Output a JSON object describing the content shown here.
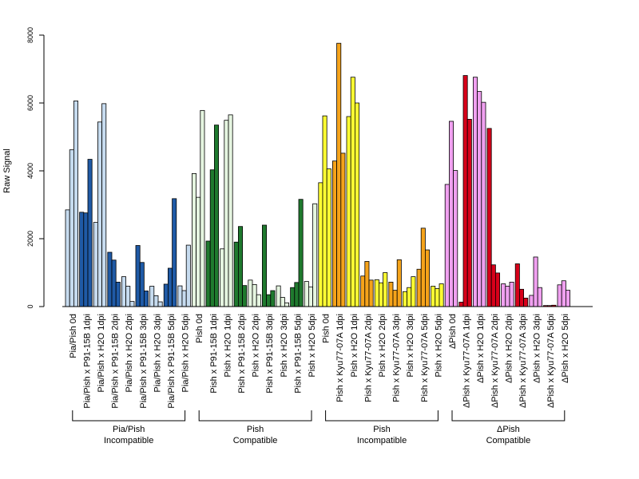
{
  "chart_data": {
    "type": "bar",
    "ylabel": "Raw Signal",
    "ylim": [
      0,
      8000
    ],
    "yticks": [
      0,
      2000,
      4000,
      6000,
      8000
    ],
    "grid": false,
    "categories": [
      {
        "label": "Pia/Pish 0d",
        "color": "#c6dbef",
        "values": [
          2850,
          4620,
          6060
        ]
      },
      {
        "label": "Pia/Pish x P91-15B 1dpi",
        "color": "#1f5aa6",
        "values": [
          2780,
          2760,
          4340
        ]
      },
      {
        "label": "Pia/Pish x H2O 1dpi",
        "color": "#c6dbef",
        "values": [
          2480,
          5440,
          5980
        ]
      },
      {
        "label": "Pia/Pish x P91-15B 2dpi",
        "color": "#1f5aa6",
        "values": [
          1600,
          1370,
          720
        ]
      },
      {
        "label": "Pia/Pish x H2O 2dpi",
        "color": "#c6dbef",
        "values": [
          880,
          600,
          150
        ]
      },
      {
        "label": "Pia/Pish x P91-15B 3dpi",
        "color": "#1f5aa6",
        "values": [
          1800,
          1300,
          460
        ]
      },
      {
        "label": "Pia/Pish x H2O 3dpi",
        "color": "#c6dbef",
        "values": [
          600,
          320,
          140
        ]
      },
      {
        "label": "Pia/Pish x P91-15B 5dpi",
        "color": "#1f5aa6",
        "values": [
          660,
          1130,
          3180
        ]
      },
      {
        "label": "Pia/Pish x H2O 5dpi",
        "color": "#c6dbef",
        "values": [
          610,
          470,
          1810
        ]
      },
      {
        "label": "Pish 0d",
        "color": "#e5f5e0",
        "values": [
          3920,
          3220,
          5780
        ]
      },
      {
        "label": "Pish x P91-15B 1dpi",
        "color": "#1f7a2e",
        "values": [
          1930,
          4030,
          5350
        ]
      },
      {
        "label": "Pish x H2O 1dpi",
        "color": "#e5f5e0",
        "values": [
          1700,
          5490,
          5650
        ]
      },
      {
        "label": "Pish x P91-15B 2dpi",
        "color": "#1f7a2e",
        "values": [
          1900,
          2360,
          620
        ]
      },
      {
        "label": "Pish x H2O 2dpi",
        "color": "#e5f5e0",
        "values": [
          780,
          650,
          350
        ]
      },
      {
        "label": "Pish x P91-15B 3dpi",
        "color": "#1f7a2e",
        "values": [
          2400,
          350,
          470
        ]
      },
      {
        "label": "Pish x H2O 3dpi",
        "color": "#e5f5e0",
        "values": [
          610,
          270,
          110
        ]
      },
      {
        "label": "Pish x P91-15B 5dpi",
        "color": "#1f7a2e",
        "values": [
          560,
          710,
          3160
        ]
      },
      {
        "label": "Pish x H2O 5dpi",
        "color": "#e5f5e0",
        "values": [
          740,
          580,
          3030
        ]
      },
      {
        "label": "Pish 0d",
        "color": "#ffff33",
        "values": [
          3650,
          5620,
          4060
        ]
      },
      {
        "label": "Pish x Kyu77-07A 1dpi",
        "color": "#f5a31a",
        "values": [
          4290,
          7760,
          4520
        ]
      },
      {
        "label": "Pish x H2O 1dpi",
        "color": "#ffff33",
        "values": [
          5600,
          6760,
          6000
        ]
      },
      {
        "label": "Pish x Kyu77-07A 2dpi",
        "color": "#f5a31a",
        "values": [
          900,
          1330,
          780
        ]
      },
      {
        "label": "Pish x H2O 2dpi",
        "color": "#ffff33",
        "values": [
          790,
          700,
          1000
        ]
      },
      {
        "label": "Pish x Kyu77-07A 3dpi",
        "color": "#f5a31a",
        "values": [
          720,
          480,
          1380
        ]
      },
      {
        "label": "Pish x H2O 3dpi",
        "color": "#ffff33",
        "values": [
          440,
          560,
          880
        ]
      },
      {
        "label": "Pish x Kyu77-07A 5dpi",
        "color": "#f5a31a",
        "values": [
          1100,
          2310,
          1670
        ]
      },
      {
        "label": "Pish x H2O 5dpi",
        "color": "#ffff33",
        "values": [
          600,
          530,
          670
        ]
      },
      {
        "label": "ΔPish 0d",
        "color": "#f0a0f0",
        "values": [
          3600,
          5460,
          4010
        ]
      },
      {
        "label": "ΔPish x Kyu77-07A 1dpi",
        "color": "#d7001a",
        "values": [
          130,
          6810,
          5520
        ]
      },
      {
        "label": "ΔPish x H2O 1dpi",
        "color": "#f0a0f0",
        "values": [
          6760,
          6340,
          6020
        ]
      },
      {
        "label": "ΔPish x Kyu77-07A 2dpi",
        "color": "#d7001a",
        "values": [
          5250,
          1230,
          990
        ]
      },
      {
        "label": "ΔPish x H2O 2dpi",
        "color": "#f0a0f0",
        "values": [
          670,
          600,
          720
        ]
      },
      {
        "label": "ΔPish x Kyu77-07A 3dpi",
        "color": "#d7001a",
        "values": [
          1260,
          510,
          250
        ]
      },
      {
        "label": "ΔPish x H2O 3dpi",
        "color": "#f0a0f0",
        "values": [
          330,
          1460,
          560
        ]
      },
      {
        "label": "ΔPish x Kyu77-07A 5dpi",
        "color": "#d7001a",
        "values": [
          30,
          30,
          40
        ]
      },
      {
        "label": "ΔPish x H2O 5dpi",
        "color": "#f0a0f0",
        "values": [
          640,
          760,
          480
        ]
      }
    ],
    "groups": [
      {
        "line1": "Pia/Pish",
        "line2": "Incompatible",
        "start": 0,
        "end": 8
      },
      {
        "line1": "Pish",
        "line2": "Compatible",
        "start": 9,
        "end": 17
      },
      {
        "line1": "Pish",
        "line2": "Incompatible",
        "start": 18,
        "end": 26
      },
      {
        "line1": "ΔPish",
        "line2": "Compatible",
        "start": 27,
        "end": 35
      }
    ]
  }
}
